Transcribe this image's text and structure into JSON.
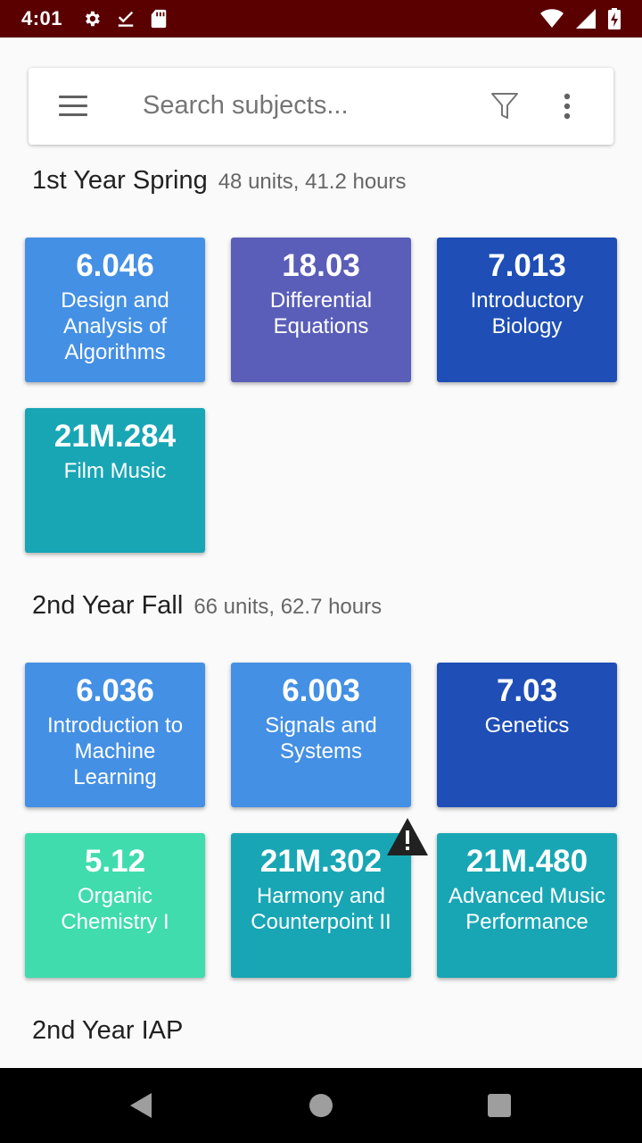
{
  "status_bar": {
    "time": "4:01",
    "left_icons": [
      "settings-icon",
      "download-done-icon",
      "sd-card-icon"
    ],
    "right_icons": [
      "wifi-icon",
      "signal-icon",
      "battery-charging-icon"
    ],
    "background": "#5a0000"
  },
  "search": {
    "placeholder": "Search subjects...",
    "menu_icon": "hamburger-menu-icon",
    "filter_icon": "filter-icon",
    "more_icon": "more-vert-icon"
  },
  "sections": [
    {
      "title": "1st Year Spring",
      "meta": "48 units, 41.2 hours",
      "subjects": [
        {
          "code": "6.046",
          "title": "Design and Analysis of Algorithms",
          "color": "#4490e4"
        },
        {
          "code": "18.03",
          "title": "Differential Equations",
          "color": "#5a5eb8"
        },
        {
          "code": "7.013",
          "title": "Introductory Biology",
          "color": "#1e4eb6"
        },
        {
          "code": "21M.284",
          "title": "Film Music",
          "color": "#18a6b5"
        }
      ]
    },
    {
      "title": "2nd Year Fall",
      "meta": "66 units, 62.7 hours",
      "subjects": [
        {
          "code": "6.036",
          "title": "Introduction to Machine Learning",
          "color": "#4490e4"
        },
        {
          "code": "6.003",
          "title": "Signals and Systems",
          "color": "#4490e4"
        },
        {
          "code": "7.03",
          "title": "Genetics",
          "color": "#1e4eb6"
        },
        {
          "code": "5.12",
          "title": "Organic Chemistry I",
          "color": "#40dcae"
        },
        {
          "code": "21M.302",
          "title": "Harmony and Counterpoint II",
          "color": "#18a6b5",
          "warning": "warning-icon"
        },
        {
          "code": "21M.480",
          "title": "Advanced Music Performance",
          "color": "#18a6b5"
        }
      ]
    },
    {
      "title": "2nd Year IAP",
      "meta": "",
      "subjects": []
    }
  ],
  "nav_bar": {
    "icons": [
      "back-icon",
      "home-icon",
      "recents-icon"
    ]
  }
}
